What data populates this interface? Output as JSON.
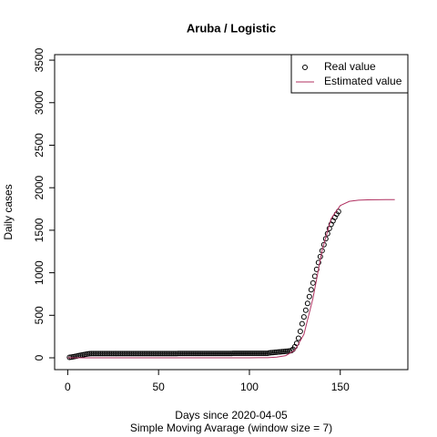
{
  "chart_data": {
    "type": "scatter_line",
    "title": "Aruba / Logistic",
    "xlabel": "Days since 2020-04-05",
    "subtitle": "Simple Moving Avarage (window size = 7)",
    "ylabel": "Daily cases",
    "xlim": [
      -7.2,
      187.2
    ],
    "ylim": [
      -139,
      3565
    ],
    "xticks": [
      0,
      50,
      100,
      150
    ],
    "yticks": [
      0,
      500,
      1000,
      1500,
      2000,
      2500,
      3000,
      3500
    ],
    "legend": "top-right",
    "series": [
      {
        "name": "Real value",
        "color": "#000000",
        "marker": "circle",
        "x": [
          1,
          2,
          3,
          4,
          5,
          6,
          7,
          8,
          9,
          10,
          11,
          12,
          13,
          14,
          15,
          16,
          17,
          18,
          19,
          20,
          21,
          22,
          23,
          24,
          25,
          26,
          27,
          28,
          29,
          30,
          31,
          32,
          33,
          34,
          35,
          36,
          37,
          38,
          39,
          40,
          41,
          42,
          43,
          44,
          45,
          46,
          47,
          48,
          49,
          50,
          51,
          52,
          53,
          54,
          55,
          56,
          57,
          58,
          59,
          60,
          61,
          62,
          63,
          64,
          65,
          66,
          67,
          68,
          69,
          70,
          71,
          72,
          73,
          74,
          75,
          76,
          77,
          78,
          79,
          80,
          81,
          82,
          83,
          84,
          85,
          86,
          87,
          88,
          89,
          90,
          91,
          92,
          93,
          94,
          95,
          96,
          97,
          98,
          99,
          100,
          101,
          102,
          103,
          104,
          105,
          106,
          107,
          108,
          109,
          110,
          111,
          112,
          113,
          114,
          115,
          116,
          117,
          118,
          119,
          120,
          121,
          122,
          123,
          124,
          125,
          126,
          127,
          128,
          129,
          130,
          131,
          132,
          133,
          134,
          135,
          136,
          137,
          138,
          139,
          140,
          141,
          142,
          143,
          144,
          145,
          146,
          147,
          148,
          149
        ],
        "values": [
          5,
          8,
          12,
          16,
          20,
          25,
          30,
          34,
          38,
          42,
          46,
          48,
          50,
          50,
          50,
          50,
          50,
          50,
          50,
          50,
          50,
          50,
          50,
          50,
          50,
          50,
          50,
          50,
          50,
          50,
          50,
          50,
          50,
          50,
          50,
          50,
          50,
          50,
          50,
          50,
          50,
          50,
          50,
          50,
          50,
          50,
          50,
          50,
          50,
          50,
          50,
          50,
          50,
          50,
          50,
          50,
          50,
          50,
          50,
          50,
          51,
          51,
          51,
          51,
          51,
          51,
          51,
          51,
          51,
          51,
          51,
          51,
          51,
          51,
          51,
          51,
          51,
          51,
          51,
          51,
          51,
          51,
          51,
          51,
          51,
          51,
          51,
          51,
          51,
          51,
          53,
          53,
          53,
          53,
          53,
          53,
          53,
          53,
          53,
          53,
          53,
          53,
          53,
          53,
          53,
          53,
          53,
          53,
          53,
          53,
          58,
          60,
          62,
          64,
          66,
          68,
          70,
          72,
          74,
          76,
          78,
          80,
          85,
          100,
          130,
          170,
          230,
          310,
          400,
          480,
          560,
          640,
          720,
          800,
          880,
          960,
          1040,
          1120,
          1190,
          1260,
          1330,
          1400,
          1460,
          1520,
          1570,
          1610,
          1650,
          1690,
          1720
        ]
      },
      {
        "name": "Estimated value",
        "color": "#b03060",
        "marker": "line",
        "x": [
          0,
          5,
          10,
          15,
          20,
          25,
          30,
          35,
          40,
          45,
          50,
          55,
          60,
          65,
          70,
          75,
          80,
          85,
          90,
          95,
          100,
          105,
          110,
          115,
          120,
          125,
          130,
          135,
          140,
          145,
          150,
          155,
          160,
          165,
          170,
          175,
          180
        ],
        "values": [
          0,
          0,
          0,
          0,
          0,
          0,
          0,
          0,
          0,
          0,
          0,
          0,
          0,
          0,
          0,
          0,
          0,
          0,
          0,
          0,
          0,
          1,
          2,
          8,
          26,
          88,
          276,
          702,
          1263,
          1638,
          1790,
          1840,
          1854,
          1858,
          1859,
          1860,
          1860
        ]
      }
    ]
  }
}
